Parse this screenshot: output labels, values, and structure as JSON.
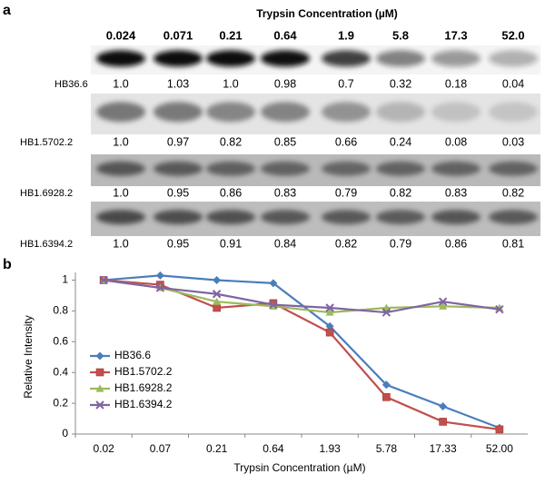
{
  "panel_a": {
    "label": "a",
    "title": "Trypsin Concentration (µM)",
    "concentrations": [
      "0.024",
      "0.071",
      "0.21",
      "0.64",
      "1.9",
      "5.8",
      "17.3",
      "52.0"
    ],
    "rows": [
      {
        "name": "HB36.6",
        "values": [
          "1.0",
          "1.03",
          "1.0",
          "0.98",
          "0.7",
          "0.32",
          "0.18",
          "0.04"
        ]
      },
      {
        "name": "HB1.5702.2",
        "values": [
          "1.0",
          "0.97",
          "0.82",
          "0.85",
          "0.66",
          "0.24",
          "0.08",
          "0.03"
        ]
      },
      {
        "name": "HB1.6928.2",
        "values": [
          "1.0",
          "0.95",
          "0.86",
          "0.83",
          "0.79",
          "0.82",
          "0.83",
          "0.82"
        ]
      },
      {
        "name": "HB1.6394.2",
        "values": [
          "1.0",
          "0.95",
          "0.91",
          "0.84",
          "0.82",
          "0.79",
          "0.86",
          "0.81"
        ]
      }
    ]
  },
  "chart_data": {
    "type": "line",
    "panel_label": "b",
    "x_label": "Trypsin Concentration (µM)",
    "y_label": "Relative Intensity",
    "categories": [
      "0.02",
      "0.07",
      "0.21",
      "0.64",
      "1.93",
      "5.78",
      "17.33",
      "52.00"
    ],
    "series": [
      {
        "name": "HB36.6",
        "color": "#4a7ebb",
        "marker": "diamond",
        "values": [
          1.0,
          1.03,
          1.0,
          0.98,
          0.7,
          0.32,
          0.18,
          0.04
        ]
      },
      {
        "name": "HB1.5702.2",
        "color": "#c0504d",
        "marker": "square",
        "values": [
          1.0,
          0.97,
          0.82,
          0.85,
          0.66,
          0.24,
          0.08,
          0.03
        ]
      },
      {
        "name": "HB1.6928.2",
        "color": "#9bbb59",
        "marker": "triangle",
        "values": [
          1.0,
          0.95,
          0.86,
          0.83,
          0.79,
          0.82,
          0.83,
          0.82
        ]
      },
      {
        "name": "HB1.6394.2",
        "color": "#8064a2",
        "marker": "x",
        "values": [
          1.0,
          0.95,
          0.91,
          0.84,
          0.82,
          0.79,
          0.86,
          0.81
        ]
      }
    ],
    "ylim": [
      0,
      1.05
    ],
    "yticks": [
      0,
      0.2,
      0.4,
      0.6,
      0.8,
      1
    ],
    "grid": false,
    "legend": "left"
  }
}
